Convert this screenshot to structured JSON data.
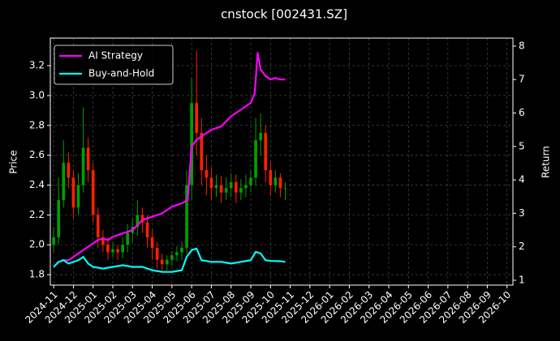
{
  "chart_data": {
    "type": "candlestick",
    "title": "cnstock [002431.SZ]",
    "ylabel": "Price",
    "y2label": "Return",
    "up_color": "#00a000",
    "down_color": "#ff2000",
    "grid": true,
    "legend": "upper left",
    "x": [
      0,
      0.25,
      0.5,
      0.75,
      1,
      1.25,
      1.5,
      1.75,
      2,
      2.25,
      2.5,
      2.75,
      3,
      3.25,
      3.5,
      3.75,
      4,
      4.25,
      4.5,
      4.75,
      5,
      5.25,
      5.5,
      5.75,
      6,
      6.25,
      6.5,
      6.75,
      7,
      7.25,
      7.5,
      7.75,
      8,
      8.25,
      8.5,
      8.75,
      9,
      9.25,
      9.5,
      9.75,
      10,
      10.25,
      10.5,
      10.75,
      11,
      11.25,
      11.5,
      11.75
    ],
    "open": [
      2.0,
      2.05,
      2.3,
      2.55,
      2.45,
      2.25,
      2.4,
      2.65,
      2.5,
      2.2,
      2.05,
      2.0,
      1.95,
      1.97,
      1.95,
      2.0,
      2.08,
      2.12,
      2.2,
      2.15,
      2.05,
      1.98,
      1.9,
      1.87,
      1.9,
      1.93,
      1.95,
      1.98,
      2.4,
      2.95,
      2.75,
      2.5,
      2.45,
      2.38,
      2.4,
      2.35,
      2.38,
      2.42,
      2.35,
      2.38,
      2.4,
      2.45,
      2.7,
      2.75,
      2.5,
      2.4,
      2.45,
      2.38
    ],
    "high": [
      2.12,
      2.45,
      2.7,
      2.62,
      2.5,
      2.48,
      2.92,
      2.72,
      2.55,
      2.25,
      2.1,
      2.05,
      2.02,
      2.0,
      2.05,
      2.14,
      2.18,
      2.3,
      2.25,
      2.2,
      2.1,
      2.02,
      1.94,
      1.93,
      1.96,
      1.99,
      2.02,
      2.5,
      3.12,
      3.3,
      2.85,
      2.6,
      2.52,
      2.47,
      2.46,
      2.45,
      2.48,
      2.47,
      2.44,
      2.47,
      2.5,
      2.85,
      2.88,
      2.8,
      2.56,
      2.5,
      2.48,
      2.42
    ],
    "low": [
      1.95,
      2.0,
      2.25,
      2.38,
      2.18,
      2.2,
      2.35,
      2.42,
      2.15,
      1.98,
      1.95,
      1.9,
      1.92,
      1.9,
      1.91,
      1.95,
      2.02,
      2.06,
      2.08,
      1.98,
      1.9,
      1.84,
      1.82,
      1.83,
      1.86,
      1.89,
      1.9,
      1.94,
      2.3,
      2.6,
      2.4,
      2.33,
      2.3,
      2.32,
      2.28,
      2.3,
      2.32,
      2.28,
      2.3,
      2.32,
      2.35,
      2.4,
      2.6,
      2.42,
      2.33,
      2.35,
      2.32,
      2.3
    ],
    "close": [
      2.05,
      2.3,
      2.55,
      2.45,
      2.25,
      2.4,
      2.65,
      2.5,
      2.2,
      2.05,
      2.0,
      1.95,
      1.97,
      1.95,
      2.0,
      2.08,
      2.12,
      2.2,
      2.15,
      2.05,
      1.98,
      1.9,
      1.87,
      1.9,
      1.93,
      1.95,
      1.98,
      2.4,
      2.95,
      2.75,
      2.5,
      2.45,
      2.38,
      2.4,
      2.35,
      2.38,
      2.42,
      2.35,
      2.38,
      2.4,
      2.45,
      2.7,
      2.75,
      2.5,
      2.4,
      2.45,
      2.38,
      2.38
    ],
    "series": [
      {
        "name": "AI Strategy",
        "color": "#ff00ff",
        "axis": "y2",
        "x": [
          0.4,
          0.75,
          1,
          1.25,
          1.5,
          1.75,
          2,
          2.25,
          2.5,
          2.75,
          3,
          3.5,
          4,
          4.5,
          5,
          5.5,
          6,
          6.5,
          6.8,
          6.9,
          7.0,
          7.25,
          7.5,
          8,
          8.5,
          9,
          9.25,
          9.5,
          10,
          10.2,
          10.35,
          10.5,
          10.75,
          11,
          11.25,
          11.5,
          11.75
        ],
        "values": [
          1.6,
          1.6,
          1.7,
          1.8,
          1.9,
          2.0,
          2.1,
          2.2,
          2.25,
          2.2,
          2.3,
          2.4,
          2.5,
          2.8,
          2.9,
          3.0,
          3.2,
          3.3,
          3.4,
          4.2,
          5.0,
          5.2,
          5.3,
          5.5,
          5.6,
          5.9,
          6.0,
          6.1,
          6.3,
          6.6,
          7.8,
          7.3,
          7.1,
          7.0,
          7.05,
          7.0,
          7.0
        ]
      },
      {
        "name": "Buy-and-Hold",
        "color": "#00ffff",
        "axis": "y2",
        "x": [
          0,
          0.25,
          0.5,
          0.75,
          1,
          1.25,
          1.5,
          1.75,
          2,
          2.5,
          3,
          3.5,
          4,
          4.5,
          5,
          5.5,
          6,
          6.5,
          6.75,
          7.0,
          7.25,
          7.5,
          8,
          8.5,
          9,
          9.5,
          10,
          10.25,
          10.5,
          10.75,
          11,
          11.5,
          11.75
        ],
        "values": [
          1.4,
          1.55,
          1.6,
          1.5,
          1.55,
          1.6,
          1.7,
          1.5,
          1.4,
          1.35,
          1.4,
          1.45,
          1.4,
          1.4,
          1.3,
          1.25,
          1.25,
          1.3,
          1.7,
          1.9,
          1.95,
          1.6,
          1.55,
          1.55,
          1.5,
          1.55,
          1.6,
          1.85,
          1.8,
          1.6,
          1.58,
          1.57,
          1.55
        ]
      }
    ],
    "xlim": [
      -0.17,
      23.3
    ],
    "xticks": [
      {
        "value": 0,
        "label": "2024-11"
      },
      {
        "value": 1,
        "label": "2024-12"
      },
      {
        "value": 2,
        "label": "2025-01"
      },
      {
        "value": 3,
        "label": "2025-02"
      },
      {
        "value": 4,
        "label": "2025-03"
      },
      {
        "value": 5,
        "label": "2025-04"
      },
      {
        "value": 6,
        "label": "2025-05"
      },
      {
        "value": 7,
        "label": "2025-06"
      },
      {
        "value": 8,
        "label": "2025-07"
      },
      {
        "value": 9,
        "label": "2025-08"
      },
      {
        "value": 10,
        "label": "2025-09"
      },
      {
        "value": 11,
        "label": "2025-10"
      },
      {
        "value": 12,
        "label": "2025-11"
      },
      {
        "value": 13,
        "label": "2025-12"
      },
      {
        "value": 14,
        "label": "2026-01"
      },
      {
        "value": 15,
        "label": "2026-02"
      },
      {
        "value": 16,
        "label": "2026-03"
      },
      {
        "value": 17,
        "label": "2026-04"
      },
      {
        "value": 18,
        "label": "2026-05"
      },
      {
        "value": 19,
        "label": "2026-06"
      },
      {
        "value": 20,
        "label": "2026-07"
      },
      {
        "value": 21,
        "label": "2026-08"
      },
      {
        "value": 22,
        "label": "2026-09"
      },
      {
        "value": 23,
        "label": "2026-10"
      }
    ],
    "ylim": [
      1.73,
      3.385
    ],
    "yticks": [
      {
        "value": 1.8,
        "label": "1.8"
      },
      {
        "value": 2.0,
        "label": "2.0"
      },
      {
        "value": 2.2,
        "label": "2.2"
      },
      {
        "value": 2.4,
        "label": "2.4"
      },
      {
        "value": 2.6,
        "label": "2.6"
      },
      {
        "value": 2.8,
        "label": "2.8"
      },
      {
        "value": 3.0,
        "label": "3.0"
      },
      {
        "value": 3.2,
        "label": "3.2"
      }
    ],
    "y2lim": [
      0.855,
      8.24
    ],
    "y2ticks": [
      1,
      2,
      3,
      4,
      5,
      6,
      7,
      8
    ]
  }
}
